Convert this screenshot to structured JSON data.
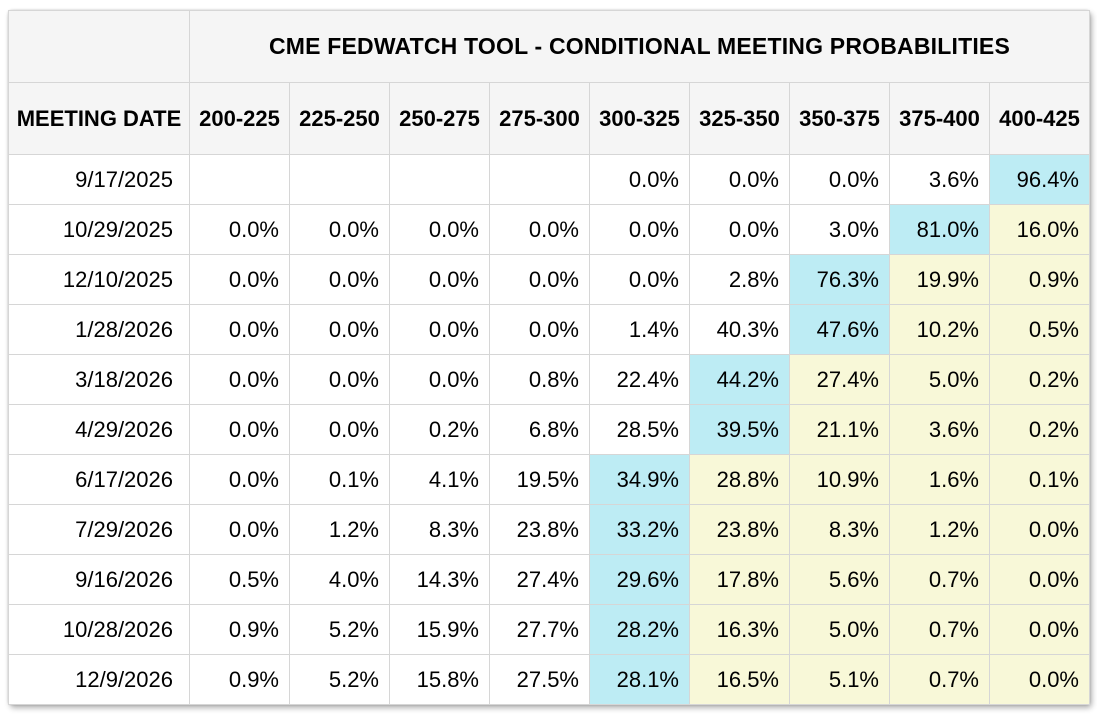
{
  "chart_data": {
    "type": "table",
    "title": "CME FEDWATCH TOOL - CONDITIONAL MEETING PROBABILITIES",
    "row_header_label": "MEETING DATE",
    "columns": [
      "200-225",
      "225-250",
      "250-275",
      "275-300",
      "300-325",
      "325-350",
      "350-375",
      "375-400",
      "400-425"
    ],
    "rows": [
      {
        "date": "9/17/2025",
        "values": [
          "",
          "",
          "",
          "",
          "0.0%",
          "0.0%",
          "0.0%",
          "3.6%",
          "96.4%"
        ],
        "highlights": [
          "e",
          "e",
          "e",
          "e",
          "w",
          "w",
          "w",
          "w",
          "c"
        ]
      },
      {
        "date": "10/29/2025",
        "values": [
          "0.0%",
          "0.0%",
          "0.0%",
          "0.0%",
          "0.0%",
          "0.0%",
          "3.0%",
          "81.0%",
          "16.0%"
        ],
        "highlights": [
          "w",
          "w",
          "w",
          "w",
          "w",
          "w",
          "w",
          "c",
          "y"
        ]
      },
      {
        "date": "12/10/2025",
        "values": [
          "0.0%",
          "0.0%",
          "0.0%",
          "0.0%",
          "0.0%",
          "2.8%",
          "76.3%",
          "19.9%",
          "0.9%"
        ],
        "highlights": [
          "w",
          "w",
          "w",
          "w",
          "w",
          "w",
          "c",
          "y",
          "y"
        ]
      },
      {
        "date": "1/28/2026",
        "values": [
          "0.0%",
          "0.0%",
          "0.0%",
          "0.0%",
          "1.4%",
          "40.3%",
          "47.6%",
          "10.2%",
          "0.5%"
        ],
        "highlights": [
          "w",
          "w",
          "w",
          "w",
          "w",
          "w",
          "c",
          "y",
          "y"
        ]
      },
      {
        "date": "3/18/2026",
        "values": [
          "0.0%",
          "0.0%",
          "0.0%",
          "0.8%",
          "22.4%",
          "44.2%",
          "27.4%",
          "5.0%",
          "0.2%"
        ],
        "highlights": [
          "w",
          "w",
          "w",
          "w",
          "w",
          "c",
          "y",
          "y",
          "y"
        ]
      },
      {
        "date": "4/29/2026",
        "values": [
          "0.0%",
          "0.0%",
          "0.2%",
          "6.8%",
          "28.5%",
          "39.5%",
          "21.1%",
          "3.6%",
          "0.2%"
        ],
        "highlights": [
          "w",
          "w",
          "w",
          "w",
          "w",
          "c",
          "y",
          "y",
          "y"
        ]
      },
      {
        "date": "6/17/2026",
        "values": [
          "0.0%",
          "0.1%",
          "4.1%",
          "19.5%",
          "34.9%",
          "28.8%",
          "10.9%",
          "1.6%",
          "0.1%"
        ],
        "highlights": [
          "w",
          "w",
          "w",
          "w",
          "c",
          "y",
          "y",
          "y",
          "y"
        ]
      },
      {
        "date": "7/29/2026",
        "values": [
          "0.0%",
          "1.2%",
          "8.3%",
          "23.8%",
          "33.2%",
          "23.8%",
          "8.3%",
          "1.2%",
          "0.0%"
        ],
        "highlights": [
          "w",
          "w",
          "w",
          "w",
          "c",
          "y",
          "y",
          "y",
          "y"
        ]
      },
      {
        "date": "9/16/2026",
        "values": [
          "0.5%",
          "4.0%",
          "14.3%",
          "27.4%",
          "29.6%",
          "17.8%",
          "5.6%",
          "0.7%",
          "0.0%"
        ],
        "highlights": [
          "w",
          "w",
          "w",
          "w",
          "c",
          "y",
          "y",
          "y",
          "y"
        ]
      },
      {
        "date": "10/28/2026",
        "values": [
          "0.9%",
          "5.2%",
          "15.9%",
          "27.7%",
          "28.2%",
          "16.3%",
          "5.0%",
          "0.7%",
          "0.0%"
        ],
        "highlights": [
          "w",
          "w",
          "w",
          "w",
          "c",
          "y",
          "y",
          "y",
          "y"
        ]
      },
      {
        "date": "12/9/2026",
        "values": [
          "0.9%",
          "5.2%",
          "15.8%",
          "27.5%",
          "28.1%",
          "16.5%",
          "5.1%",
          "0.7%",
          "0.0%"
        ],
        "highlights": [
          "w",
          "w",
          "w",
          "w",
          "c",
          "y",
          "y",
          "y",
          "y"
        ]
      }
    ],
    "highlight_legend": {
      "c": "highest probability in row (cyan)",
      "y": "cells right of highest probability (pale yellow)",
      "w": "plain white cell",
      "e": "empty cell"
    },
    "colors": {
      "cyan": "#bdecf4",
      "yellow": "#f8f8d8",
      "header_bg": "#f5f5f5",
      "border": "#d6d6d6",
      "text": "#000000",
      "page_bg": "#ffffff"
    }
  }
}
